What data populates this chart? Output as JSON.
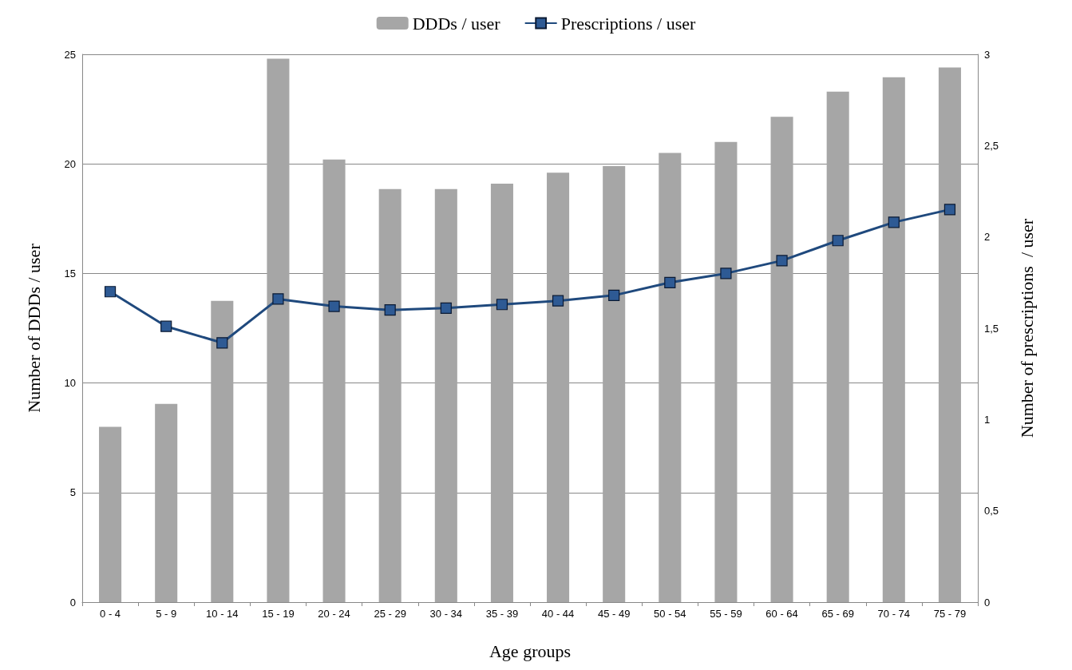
{
  "chart_data": {
    "type": "bar",
    "xlabel": "Age groups",
    "ylabel": "Number of DDDs / user",
    "y2label": "Number of prescriptions  / user",
    "categories": [
      "0 - 4",
      "5 - 9",
      "10 - 14",
      "15 - 19",
      "20 - 24",
      "25 - 29",
      "30 - 34",
      "35 - 39",
      "40 - 44",
      "45 - 49",
      "50 - 54",
      "55 - 59",
      "60 - 64",
      "65 - 69",
      "70 - 74",
      "75 - 79"
    ],
    "series": [
      {
        "name": "DDDs / user",
        "color": "#a6a6a6",
        "values": [
          8.0,
          9.05,
          13.75,
          24.8,
          20.2,
          18.85,
          18.85,
          19.1,
          19.6,
          19.9,
          20.5,
          21.0,
          22.15,
          23.3,
          23.95,
          24.4
        ]
      },
      {
        "name": "Prescriptions / user",
        "type": "line",
        "axis": "y2",
        "color": "#1f497d",
        "marker": "square",
        "values": [
          1.7,
          1.51,
          1.42,
          1.66,
          1.62,
          1.6,
          1.61,
          1.63,
          1.65,
          1.68,
          1.75,
          1.8,
          1.87,
          1.98,
          2.08,
          2.15
        ]
      }
    ],
    "ylim": [
      0,
      25
    ],
    "yticks": [
      0,
      5,
      10,
      15,
      20,
      25
    ],
    "y2lim": [
      0,
      3
    ],
    "y2ticks": [
      0,
      {
        "value": 0.5,
        "label": "0,5"
      },
      1,
      {
        "value": 1.5,
        "label": "1,5"
      },
      2,
      {
        "value": 2.5,
        "label": "2,5"
      },
      3
    ],
    "grid": "y",
    "legend": "top"
  }
}
